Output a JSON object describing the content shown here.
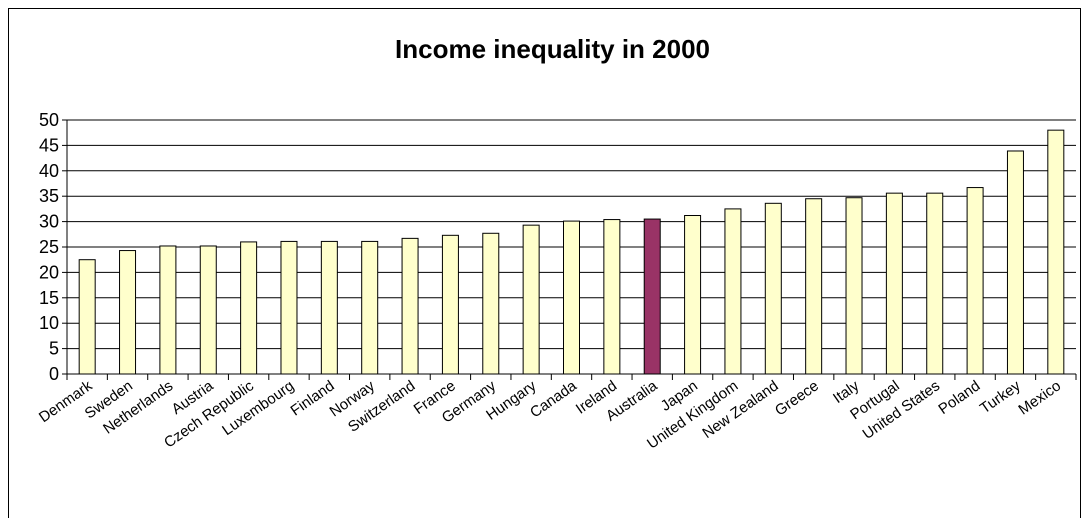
{
  "chart_data": {
    "type": "bar",
    "title": "Income inequality in 2000",
    "xlabel": "",
    "ylabel": "",
    "ylim": [
      0,
      50
    ],
    "yticks": [
      0,
      5,
      10,
      15,
      20,
      25,
      30,
      35,
      40,
      45,
      50
    ],
    "grid": true,
    "categories": [
      "Denmark",
      "Sweden",
      "Netherlands",
      "Austria",
      "Czech Republic",
      "Luxembourg",
      "Finland",
      "Norway",
      "Switzerland",
      "France",
      "Germany",
      "Hungary",
      "Canada",
      "Ireland",
      "Australia",
      "Japan",
      "United Kingdom",
      "New Zealand",
      "Greece",
      "Italy",
      "Portugal",
      "United States",
      "Poland",
      "Turkey",
      "Mexico"
    ],
    "values": [
      22.5,
      24.3,
      25.2,
      25.2,
      26.0,
      26.1,
      26.1,
      26.1,
      26.7,
      27.3,
      27.7,
      29.3,
      30.1,
      30.4,
      30.5,
      31.2,
      32.5,
      33.6,
      34.5,
      34.7,
      35.6,
      35.6,
      36.7,
      43.9,
      48.0
    ],
    "highlight": "Australia",
    "colors": {
      "bar": "#FFFFCC",
      "highlight": "#993366",
      "border": "#000000",
      "grid": "#000000"
    }
  }
}
